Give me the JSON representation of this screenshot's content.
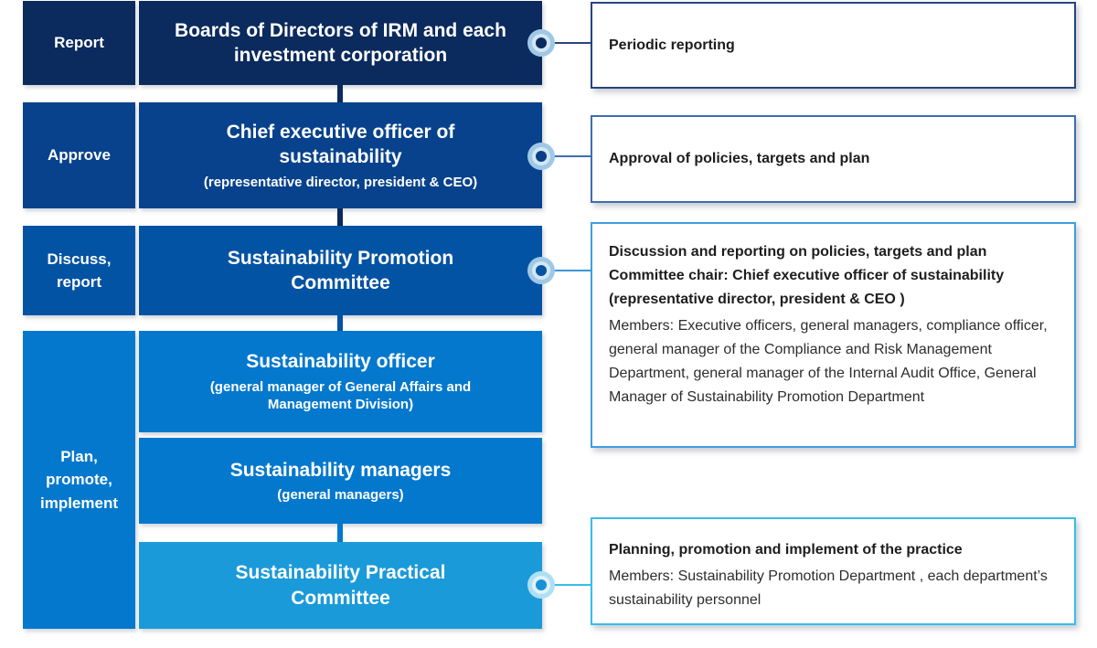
{
  "colors": {
    "row1_navy": "#0b2a5d",
    "row2_blue": "#08428c",
    "row3_blue": "#0353a4",
    "row4_blue": "#0478cd",
    "practical_blue": "#1b9ad9",
    "note1_border": "#27457e",
    "note2_border": "#3e6db3",
    "note3_border": "#3e9ede",
    "note4_border": "#38bdea"
  },
  "left_labels": [
    {
      "label": "Report"
    },
    {
      "label": "Approve"
    },
    {
      "label": "Discuss,\nreport"
    },
    {
      "label": "Plan,\npromote,\nimplement"
    }
  ],
  "org_boxes": [
    {
      "title": "Boards of Directors of IRM and each investment corporation"
    },
    {
      "title": "Chief executive officer of sustainability",
      "subtitle": "(representative director, president & CEO)"
    },
    {
      "title": "Sustainability Promotion Committee"
    },
    {
      "title": "Sustainability officer",
      "subtitle": "(general manager of General Affairs and Management Division)"
    },
    {
      "title": "Sustainability managers",
      "subtitle": "(general managers)"
    },
    {
      "title": "Sustainability Practical Committee"
    }
  ],
  "note_boxes": [
    {
      "bold_lines": [
        "Periodic reporting"
      ]
    },
    {
      "bold_lines": [
        "Approval of policies, targets and plan"
      ]
    },
    {
      "bold_lines": [
        "Discussion and reporting on policies, targets and plan",
        "Committee chair: Chief executive officer of sustainability (representative director, president & CEO )"
      ],
      "body": "Members: Executive officers, general managers, compliance officer, general manager of the Compliance and Risk Management Department, general manager of the Internal Audit Office, General Manager of Sustainability Promotion Department"
    },
    {
      "bold_lines": [
        "Planning, promotion and implement of the practice"
      ],
      "body": "Members: Sustainability Promotion Department , each department’s sustainability personnel"
    }
  ]
}
